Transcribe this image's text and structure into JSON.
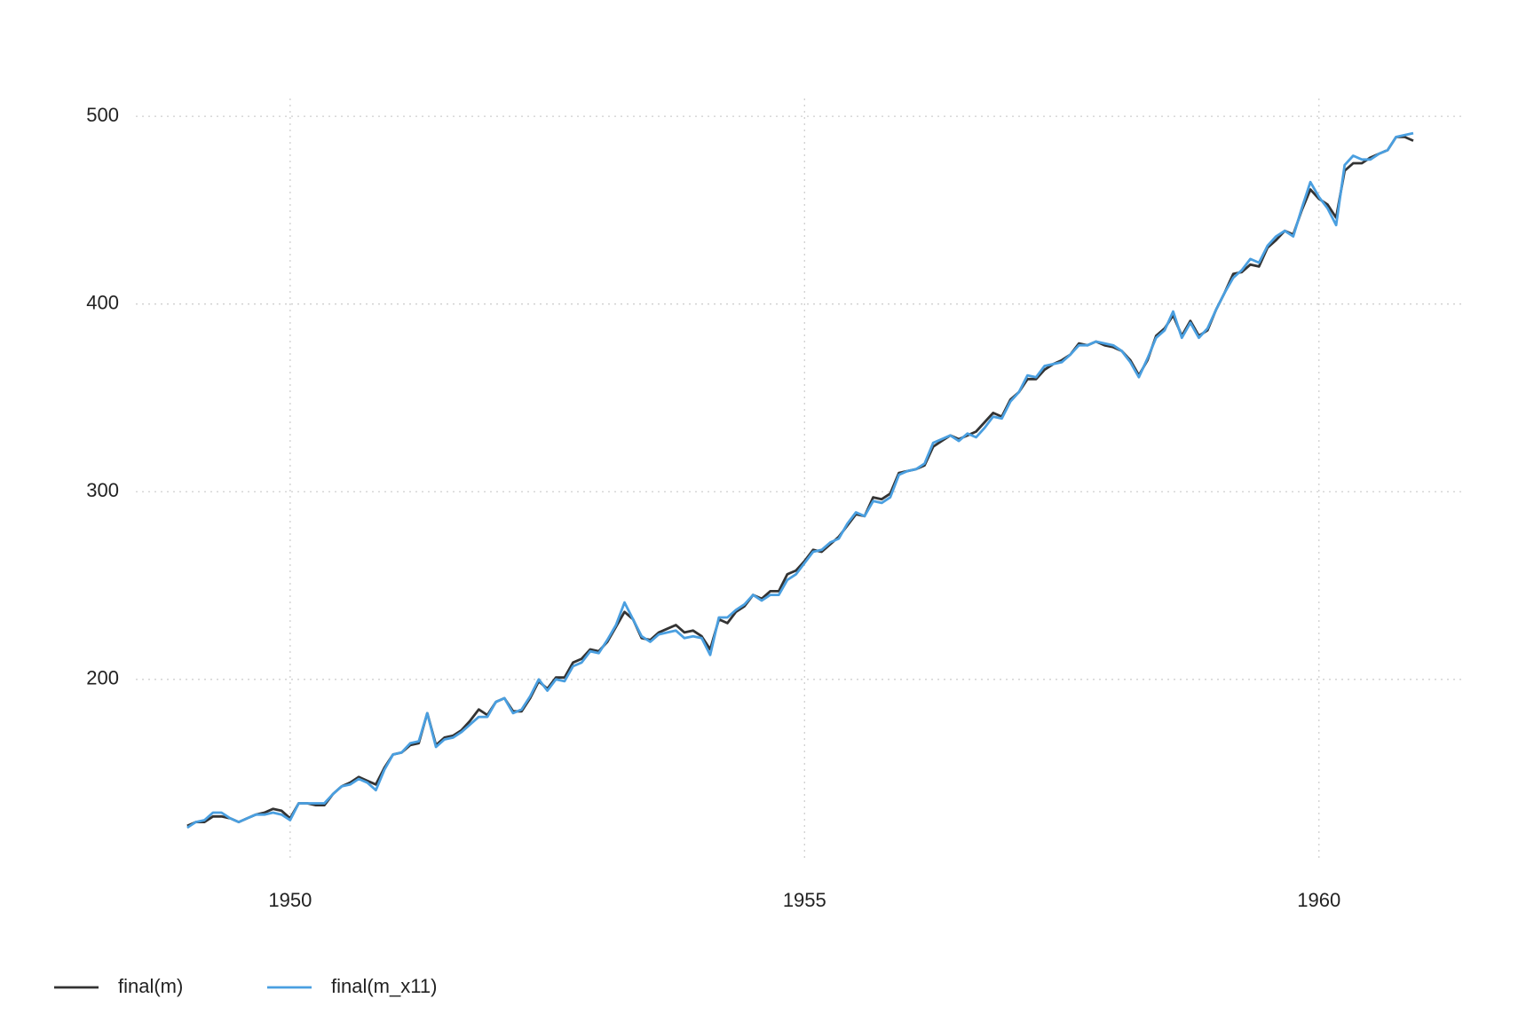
{
  "chart_data": {
    "type": "line",
    "x": [
      1949,
      1949.083,
      1949.167,
      1949.25,
      1949.333,
      1949.417,
      1949.5,
      1949.583,
      1949.667,
      1949.75,
      1949.833,
      1949.917,
      1950,
      1950.083,
      1950.167,
      1950.25,
      1950.333,
      1950.417,
      1950.5,
      1950.583,
      1950.667,
      1950.75,
      1950.833,
      1950.917,
      1951,
      1951.083,
      1951.167,
      1951.25,
      1951.333,
      1951.417,
      1951.5,
      1951.583,
      1951.667,
      1951.75,
      1951.833,
      1951.917,
      1952,
      1952.083,
      1952.167,
      1952.25,
      1952.333,
      1952.417,
      1952.5,
      1952.583,
      1952.667,
      1952.75,
      1952.833,
      1952.917,
      1953,
      1953.083,
      1953.167,
      1953.25,
      1953.333,
      1953.417,
      1953.5,
      1953.583,
      1953.667,
      1953.75,
      1953.833,
      1953.917,
      1954,
      1954.083,
      1954.167,
      1954.25,
      1954.333,
      1954.417,
      1954.5,
      1954.583,
      1954.667,
      1954.75,
      1954.833,
      1954.917,
      1955,
      1955.083,
      1955.167,
      1955.25,
      1955.333,
      1955.417,
      1955.5,
      1955.583,
      1955.667,
      1955.75,
      1955.833,
      1955.917,
      1956,
      1956.083,
      1956.167,
      1956.25,
      1956.333,
      1956.417,
      1956.5,
      1956.583,
      1956.667,
      1956.75,
      1956.833,
      1956.917,
      1957,
      1957.083,
      1957.167,
      1957.25,
      1957.333,
      1957.417,
      1957.5,
      1957.583,
      1957.667,
      1957.75,
      1957.833,
      1957.917,
      1958,
      1958.083,
      1958.167,
      1958.25,
      1958.333,
      1958.417,
      1958.5,
      1958.583,
      1958.667,
      1958.75,
      1958.833,
      1958.917,
      1959,
      1959.083,
      1959.167,
      1959.25,
      1959.333,
      1959.417,
      1959.5,
      1959.583,
      1959.667,
      1959.75,
      1959.833,
      1959.917,
      1960,
      1960.083,
      1960.167,
      1960.25,
      1960.333,
      1960.417,
      1960.5,
      1960.583,
      1960.667,
      1960.75,
      1960.833,
      1960.917
    ],
    "series": [
      {
        "name": "final(m)",
        "color": "#333333",
        "values": [
          122,
          124,
          124,
          127,
          127,
          126,
          124,
          126,
          128,
          129,
          131,
          130,
          126,
          134,
          134,
          133,
          133,
          139,
          143,
          145,
          148,
          146,
          144,
          153,
          160,
          161,
          165,
          166,
          182,
          165,
          169,
          170,
          173,
          178,
          184,
          181,
          188,
          190,
          183,
          183,
          190,
          199,
          195,
          201,
          201,
          209,
          211,
          216,
          215,
          220,
          228,
          236,
          232,
          222,
          221,
          225,
          227,
          229,
          225,
          226,
          223,
          216,
          232,
          230,
          236,
          239,
          245,
          243,
          247,
          247,
          256,
          258,
          263,
          269,
          268,
          272,
          276,
          282,
          288,
          287,
          297,
          296,
          299,
          310,
          311,
          312,
          314,
          324,
          327,
          330,
          328,
          330,
          332,
          337,
          342,
          340,
          349,
          353,
          360,
          360,
          365,
          368,
          370,
          373,
          379,
          378,
          380,
          378,
          377,
          375,
          370,
          362,
          370,
          383,
          387,
          394,
          383,
          391,
          383,
          386,
          397,
          406,
          416,
          417,
          421,
          420,
          430,
          434,
          439,
          437,
          450,
          461,
          456,
          453,
          446,
          471,
          475,
          475,
          478,
          480,
          482,
          489,
          489,
          487
        ]
      },
      {
        "name": "final(m_x11)",
        "color": "#4a9fe0",
        "values": [
          121,
          124,
          125,
          129,
          129,
          126,
          124,
          126,
          128,
          128,
          129,
          128,
          125,
          134,
          134,
          134,
          134,
          139,
          143,
          144,
          147,
          145,
          141,
          152,
          160,
          161,
          166,
          167,
          182,
          164,
          168,
          169,
          172,
          176,
          180,
          180,
          188,
          190,
          182,
          184,
          191,
          200,
          194,
          200,
          199,
          207,
          209,
          215,
          214,
          221,
          229,
          241,
          232,
          223,
          220,
          224,
          225,
          226,
          222,
          223,
          222,
          213,
          233,
          233,
          237,
          240,
          245,
          242,
          245,
          245,
          253,
          256,
          262,
          268,
          269,
          273,
          275,
          283,
          289,
          287,
          295,
          294,
          297,
          309,
          311,
          312,
          315,
          326,
          328,
          330,
          327,
          331,
          329,
          334,
          340,
          339,
          348,
          353,
          362,
          361,
          367,
          368,
          369,
          373,
          378,
          378,
          380,
          379,
          378,
          375,
          369,
          361,
          371,
          382,
          386,
          396,
          382,
          390,
          382,
          387,
          397,
          406,
          414,
          418,
          424,
          422,
          431,
          436,
          439,
          436,
          451,
          465,
          457,
          451,
          442,
          474,
          479,
          477,
          477,
          480,
          482,
          489,
          490,
          491
        ]
      }
    ],
    "xlim": [
      1948.5,
      1961.4
    ],
    "xticks": [
      1950,
      1955,
      1960
    ],
    "ylim": [
      103.5,
      509.5
    ],
    "yticks": [
      200,
      300,
      400,
      500
    ],
    "grid": true,
    "legend": "bottom"
  }
}
